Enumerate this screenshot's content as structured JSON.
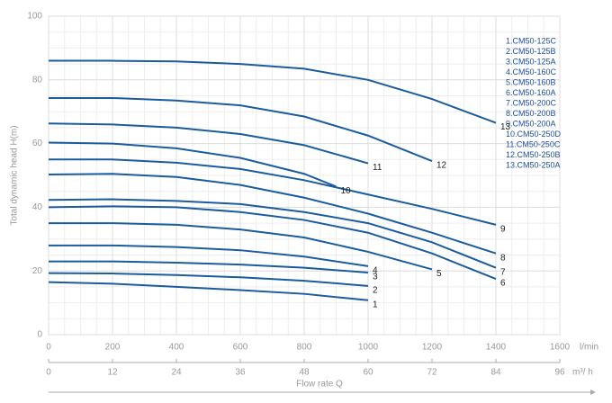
{
  "chart_data": {
    "type": "line",
    "ylabel": "Total dynamic head H(m)",
    "xlabel": "Flow rate Q",
    "x_unit": "l/min",
    "x2_unit": "m³/ h",
    "xlim": [
      0,
      1600
    ],
    "xticks": [
      0,
      200,
      400,
      600,
      800,
      1000,
      1200,
      1400,
      1600
    ],
    "x2lim": [
      0,
      96
    ],
    "x2ticks": [
      0,
      12,
      24,
      36,
      48,
      60,
      72,
      84,
      96
    ],
    "ylim": [
      0,
      100
    ],
    "yticks": [
      0,
      20,
      40,
      60,
      80,
      100
    ],
    "grid": true,
    "legend": "upper right",
    "color": "#1a5c9e",
    "series": [
      {
        "name": "1.CM50-125C",
        "label": "1",
        "x": [
          0,
          200,
          400,
          600,
          800,
          1000
        ],
        "values": [
          16.5,
          16,
          15,
          14,
          12.8,
          10.8
        ]
      },
      {
        "name": "2.CM50-125B",
        "label": "2",
        "x": [
          0,
          200,
          400,
          600,
          800,
          1000
        ],
        "values": [
          19.3,
          19.2,
          18.7,
          18,
          16.9,
          15.3
        ]
      },
      {
        "name": "3.CM50-125A",
        "label": "3",
        "x": [
          0,
          200,
          400,
          600,
          800,
          1000
        ],
        "values": [
          23,
          23,
          22.6,
          22,
          21,
          19.5
        ]
      },
      {
        "name": "4.CM50-160C",
        "label": "4",
        "x": [
          0,
          200,
          400,
          600,
          800,
          1000
        ],
        "values": [
          28,
          28,
          27.5,
          26.5,
          24.5,
          21.5
        ]
      },
      {
        "name": "5.CM50-160B",
        "label": "5",
        "x": [
          0,
          200,
          400,
          600,
          800,
          1000,
          1200
        ],
        "values": [
          35,
          35,
          34.5,
          33,
          30.5,
          26,
          20.5
        ]
      },
      {
        "name": "6.CM50-160A",
        "label": "6",
        "x": [
          0,
          200,
          400,
          600,
          800,
          1000,
          1200,
          1400
        ],
        "values": [
          40,
          40.3,
          40,
          38.5,
          36,
          32,
          25.5,
          17.5
        ]
      },
      {
        "name": "7.CM50-200C",
        "label": "7",
        "x": [
          0,
          200,
          400,
          600,
          800,
          1000,
          1200,
          1400
        ],
        "values": [
          42.3,
          42.5,
          42,
          41,
          38.5,
          35,
          29,
          21
        ]
      },
      {
        "name": "8.CM50-200B",
        "label": "8",
        "x": [
          0,
          200,
          400,
          600,
          800,
          1000,
          1200,
          1400
        ],
        "values": [
          50.3,
          50.5,
          49.5,
          47,
          43,
          38,
          32,
          25.5
        ]
      },
      {
        "name": "9.CM50-200A",
        "label": "9",
        "x": [
          0,
          200,
          400,
          600,
          800,
          1000,
          1200,
          1400
        ],
        "values": [
          55,
          55,
          54,
          52,
          48.5,
          44,
          39.5,
          34.5
        ]
      },
      {
        "name": "10.CM50-250D",
        "label": "10",
        "x": [
          0,
          200,
          400,
          600,
          800,
          900
        ],
        "values": [
          60.3,
          60,
          58.5,
          55.5,
          50.5,
          46.5
        ]
      },
      {
        "name": "11.CM50-250C",
        "label": "11",
        "x": [
          0,
          200,
          400,
          600,
          800,
          1000
        ],
        "values": [
          66.3,
          66,
          65,
          63,
          59.5,
          53.8
        ]
      },
      {
        "name": "12.CM50-250B",
        "label": "12",
        "x": [
          0,
          200,
          400,
          600,
          800,
          1000,
          1200
        ],
        "values": [
          74.3,
          74.3,
          73.5,
          72,
          68.5,
          62.5,
          54.5
        ]
      },
      {
        "name": "13.CM50-250A",
        "label": "13",
        "x": [
          0,
          200,
          400,
          600,
          800,
          1000,
          1200,
          1400
        ],
        "values": [
          86,
          86,
          85.8,
          85,
          83.5,
          80,
          74,
          66.5
        ]
      }
    ]
  }
}
